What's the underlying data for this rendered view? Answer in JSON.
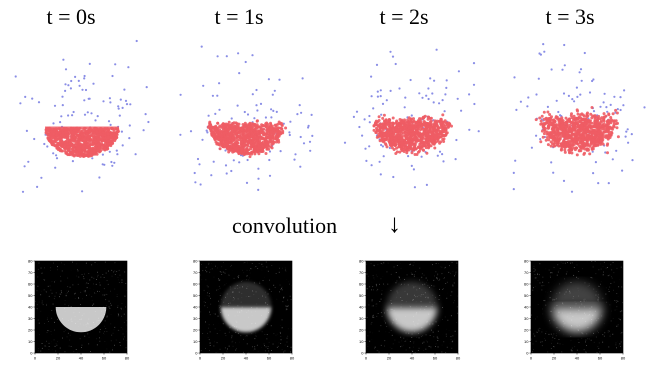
{
  "time_labels": [
    "t = 0s",
    "t = 1s",
    "t = 2s",
    "t = 3s"
  ],
  "convolution_label": "convolution",
  "arrow_glyph": "↓",
  "colors": {
    "dense_particle": "#ee5c64",
    "sparse_particle": "#8a8ee6",
    "image_background": "#000000",
    "image_blob": "#c8c8c8"
  },
  "chart_data": {
    "type": "heatmap",
    "panels": [
      {
        "time": "t = 0s",
        "shape": "flat-topped half disk",
        "blur": 0
      },
      {
        "time": "t = 1s",
        "shape": "rounded half disk",
        "blur": 1
      },
      {
        "time": "t = 2s",
        "shape": "rounded half disk",
        "blur": 2
      },
      {
        "time": "t = 3s",
        "shape": "rounded half disk",
        "blur": 3
      }
    ],
    "x_ticks": [
      "0",
      "20",
      "40",
      "60",
      "80"
    ],
    "y_ticks": [
      "80",
      "70",
      "60",
      "50",
      "40",
      "30",
      "20",
      "10",
      "0"
    ],
    "xlim": [
      0,
      80
    ],
    "ylim": [
      0,
      80
    ]
  }
}
